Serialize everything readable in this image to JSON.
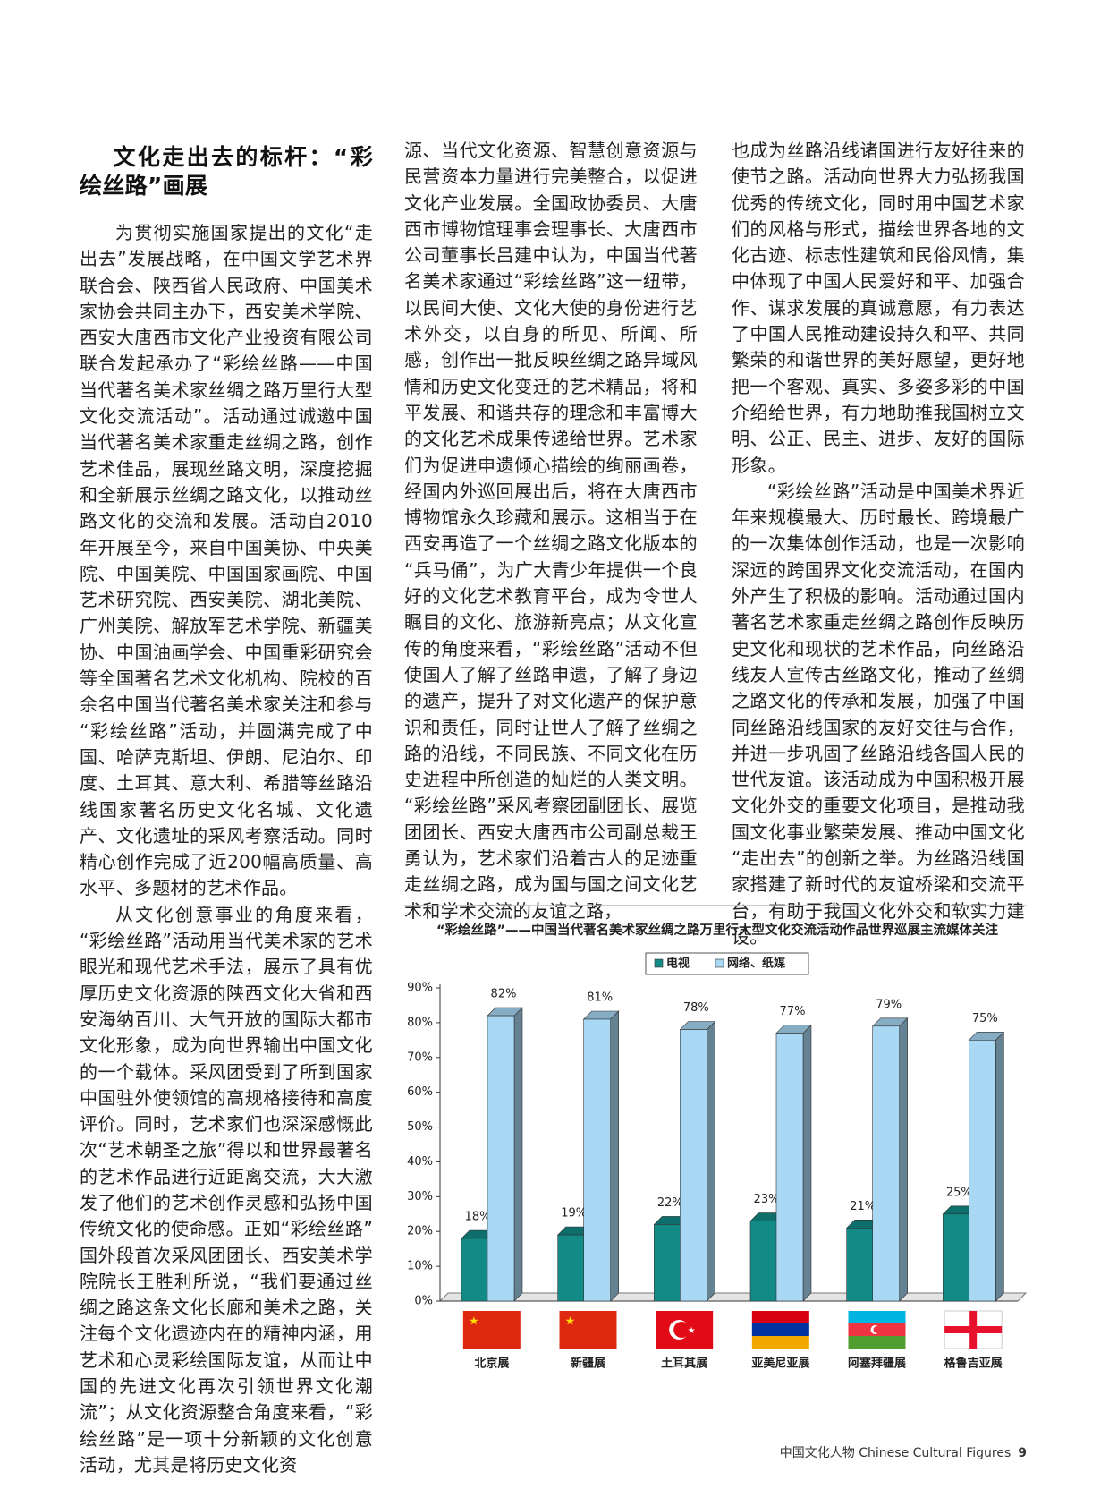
{
  "article": {
    "title": "文化走出去的标杆：“彩绘丝路”画展",
    "columns": [
      [
        "为贯彻实施国家提出的文化“走出去”发展战略，在中国文学艺术界联合会、陕西省人民政府、中国美术家协会共同主办下，西安美术学院、西安大唐西市文化产业投资有限公司联合发起承办了“彩绘丝路——中国当代著名美术家丝绸之路万里行大型文化交流活动”。活动通过诚邀中国当代著名美术家重走丝绸之路，创作艺术佳品，展现丝路文明，深度挖掘和全新展示丝绸之路文化，以推动丝路文化的交流和发展。活动自2010年开展至今，来自中国美协、中央美院、中国美院、中国国家画院、中国艺术研究院、西安美院、湖北美院、广州美院、解放军艺术学院、新疆美协、中国油画学会、中国重彩研究会等全国著名艺术文化机构、院校的百余名中国当代著名美术家关注和参与“彩绘丝路”活动，并圆满完成了中国、哈萨克斯坦、伊朗、尼泊尔、印度、土耳其、意大利、希腊等丝路沿线国家著名历史文化名城、文化遗产、文化遗址的采风考察活动。同时精心创作完成了近200幅高质量、高水平、多题材的艺术作品。",
        "从文化创意事业的角度来看，“彩绘丝路”活动用当代美术家的艺术眼光和现代艺术手法，展示了具有优厚历史文化资源的陕西文化大省和西安海纳百川、大气开放的国际大都市文化形象，成为向世界输出中国文化的一个载体。采风团受到了所到国家中国驻外使领馆的高规格接待和高度评价。同时，艺术家们也深深感慨此次“艺术朝圣之旅”得以和世界最著名的艺术作品进行近距离交流，大大激发了他们的艺术创作灵感和弘扬中国传统文化的使命感。正如“彩绘丝路”国外段首次采风团团长、西安美术学院院长王胜利所说，“我们要通过丝绸之路这条文化长廊和美术之路，关注每个文化遗迹内在的精神内涵，用艺术和心灵彩绘国际友谊，从而让中国的先进文化再次引领世界文化潮流”；从文化资源整合角度来看，“彩绘丝路”是一项十分新颖的文化创意活动，尤其是将历史文化资"
      ],
      [
        "源、当代文化资源、智慧创意资源与民营资本力量进行完美整合，以促进文化产业发展。全国政协委员、大唐西市博物馆理事会理事长、大唐西市公司董事长吕建中认为，中国当代著名美术家通过“彩绘丝路”这一纽带，以民间大使、文化大使的身份进行艺术外交，以自身的所见、所闻、所感，创作出一批反映丝绸之路异域风情和历史文化变迁的艺术精品，将和平发展、和谐共存的理念和丰富博大的文化艺术成果传递给世界。艺术家们为促进申遗倾心描绘的绚丽画卷，经国内外巡回展出后，将在大唐西市博物馆永久珍藏和展示。这相当于在西安再造了一个丝绸之路文化版本的“兵马俑”，为广大青少年提供一个良好的文化艺术教育平台，成为令世人瞩目的文化、旅游新亮点；从文化宣传的角度来看，“彩绘丝路”活动不但使国人了解了丝路申遗，了解了身边的遗产，提升了对文化遗产的保护意识和责任，同时让世人了解了丝绸之路的沿线，不同民族、不同文化在历史进程中所创造的灿烂的人类文明。“彩绘丝路”采风考察团副团长、展览团团长、西安大唐西市公司副总裁王勇认为，艺术家们沿着古人的足迹重走丝绸之路，成为国与国之间文化艺术和学术交流的友谊之路，"
      ],
      [
        "也成为丝路沿线诸国进行友好往来的使节之路。活动向世界大力弘扬我国优秀的传统文化，同时用中国艺术家们的风格与形式，描绘世界各地的文化古迹、标志性建筑和民俗风情，集中体现了中国人民爱好和平、加强合作、谋求发展的真诚意愿，有力表达了中国人民推动建设持久和平、共同繁荣的和谐世界的美好愿望，更好地把一个客观、真实、多姿多彩的中国介绍给世界，有力地助推我国树立文明、公正、民主、进步、友好的国际形象。",
        "“彩绘丝路”活动是中国美术界近年来规模最大、历时最长、跨境最广的一次集体创作活动，也是一次影响深远的跨国界文化交流活动，在国内外产生了积极的影响。活动通过国内著名艺术家重走丝绸之路创作反映历史文化和现状的艺术作品，向丝路沿线友人宣传古丝路文化，推动了丝绸之路文化的传承和发展，加强了中国同丝路沿线国家的友好交往与合作，并进一步巩固了丝路沿线各国人民的世代友谊。该活动成为中国积极开展文化外交的重要文化项目，是推动我国文化事业繁荣发展、推动中国文化“走出去”的创新之举。为丝路沿线国家搭建了新时代的友谊桥梁和交流平台，有助于我国文化外交和软实力建设。"
      ]
    ]
  },
  "chart_data": {
    "type": "bar",
    "title": "“彩绘丝路”——中国当代著名美术家丝绸之路万里行大型文化交流活动作品世界巡展主流媒体关注",
    "categories": [
      "北京展",
      "新疆展",
      "土耳其展",
      "亚美尼亚展",
      "阿塞拜疆展",
      "格鲁吉亚展"
    ],
    "series": [
      {
        "name": "电视",
        "color": "#128a86",
        "values": [
          18,
          19,
          22,
          23,
          21,
          25
        ],
        "value_labels": [
          "18%",
          "19%",
          "22%",
          "23%",
          "21%",
          "25%"
        ]
      },
      {
        "name": "网络、纸媒",
        "color": "#a8d8f4",
        "values": [
          82,
          81,
          78,
          77,
          79,
          75
        ],
        "value_labels": [
          "82%",
          "81%",
          "78%",
          "77%",
          "79%",
          "75%"
        ]
      }
    ],
    "ylim": [
      0,
      90
    ],
    "yticks": [
      {
        "value": 0,
        "label": "0%"
      },
      {
        "value": 10,
        "label": "10%"
      },
      {
        "value": 20,
        "label": "20%"
      },
      {
        "value": 30,
        "label": "30%"
      },
      {
        "value": 40,
        "label": "40%"
      },
      {
        "value": 50,
        "label": "50%"
      },
      {
        "value": 60,
        "label": "60%"
      },
      {
        "value": 70,
        "label": "70%"
      },
      {
        "value": 80,
        "label": "80%"
      },
      {
        "value": 90,
        "label": "90%"
      }
    ]
  },
  "footer": {
    "publication": "中国文化人物 Chinese Cultural Figures",
    "page": "9"
  }
}
